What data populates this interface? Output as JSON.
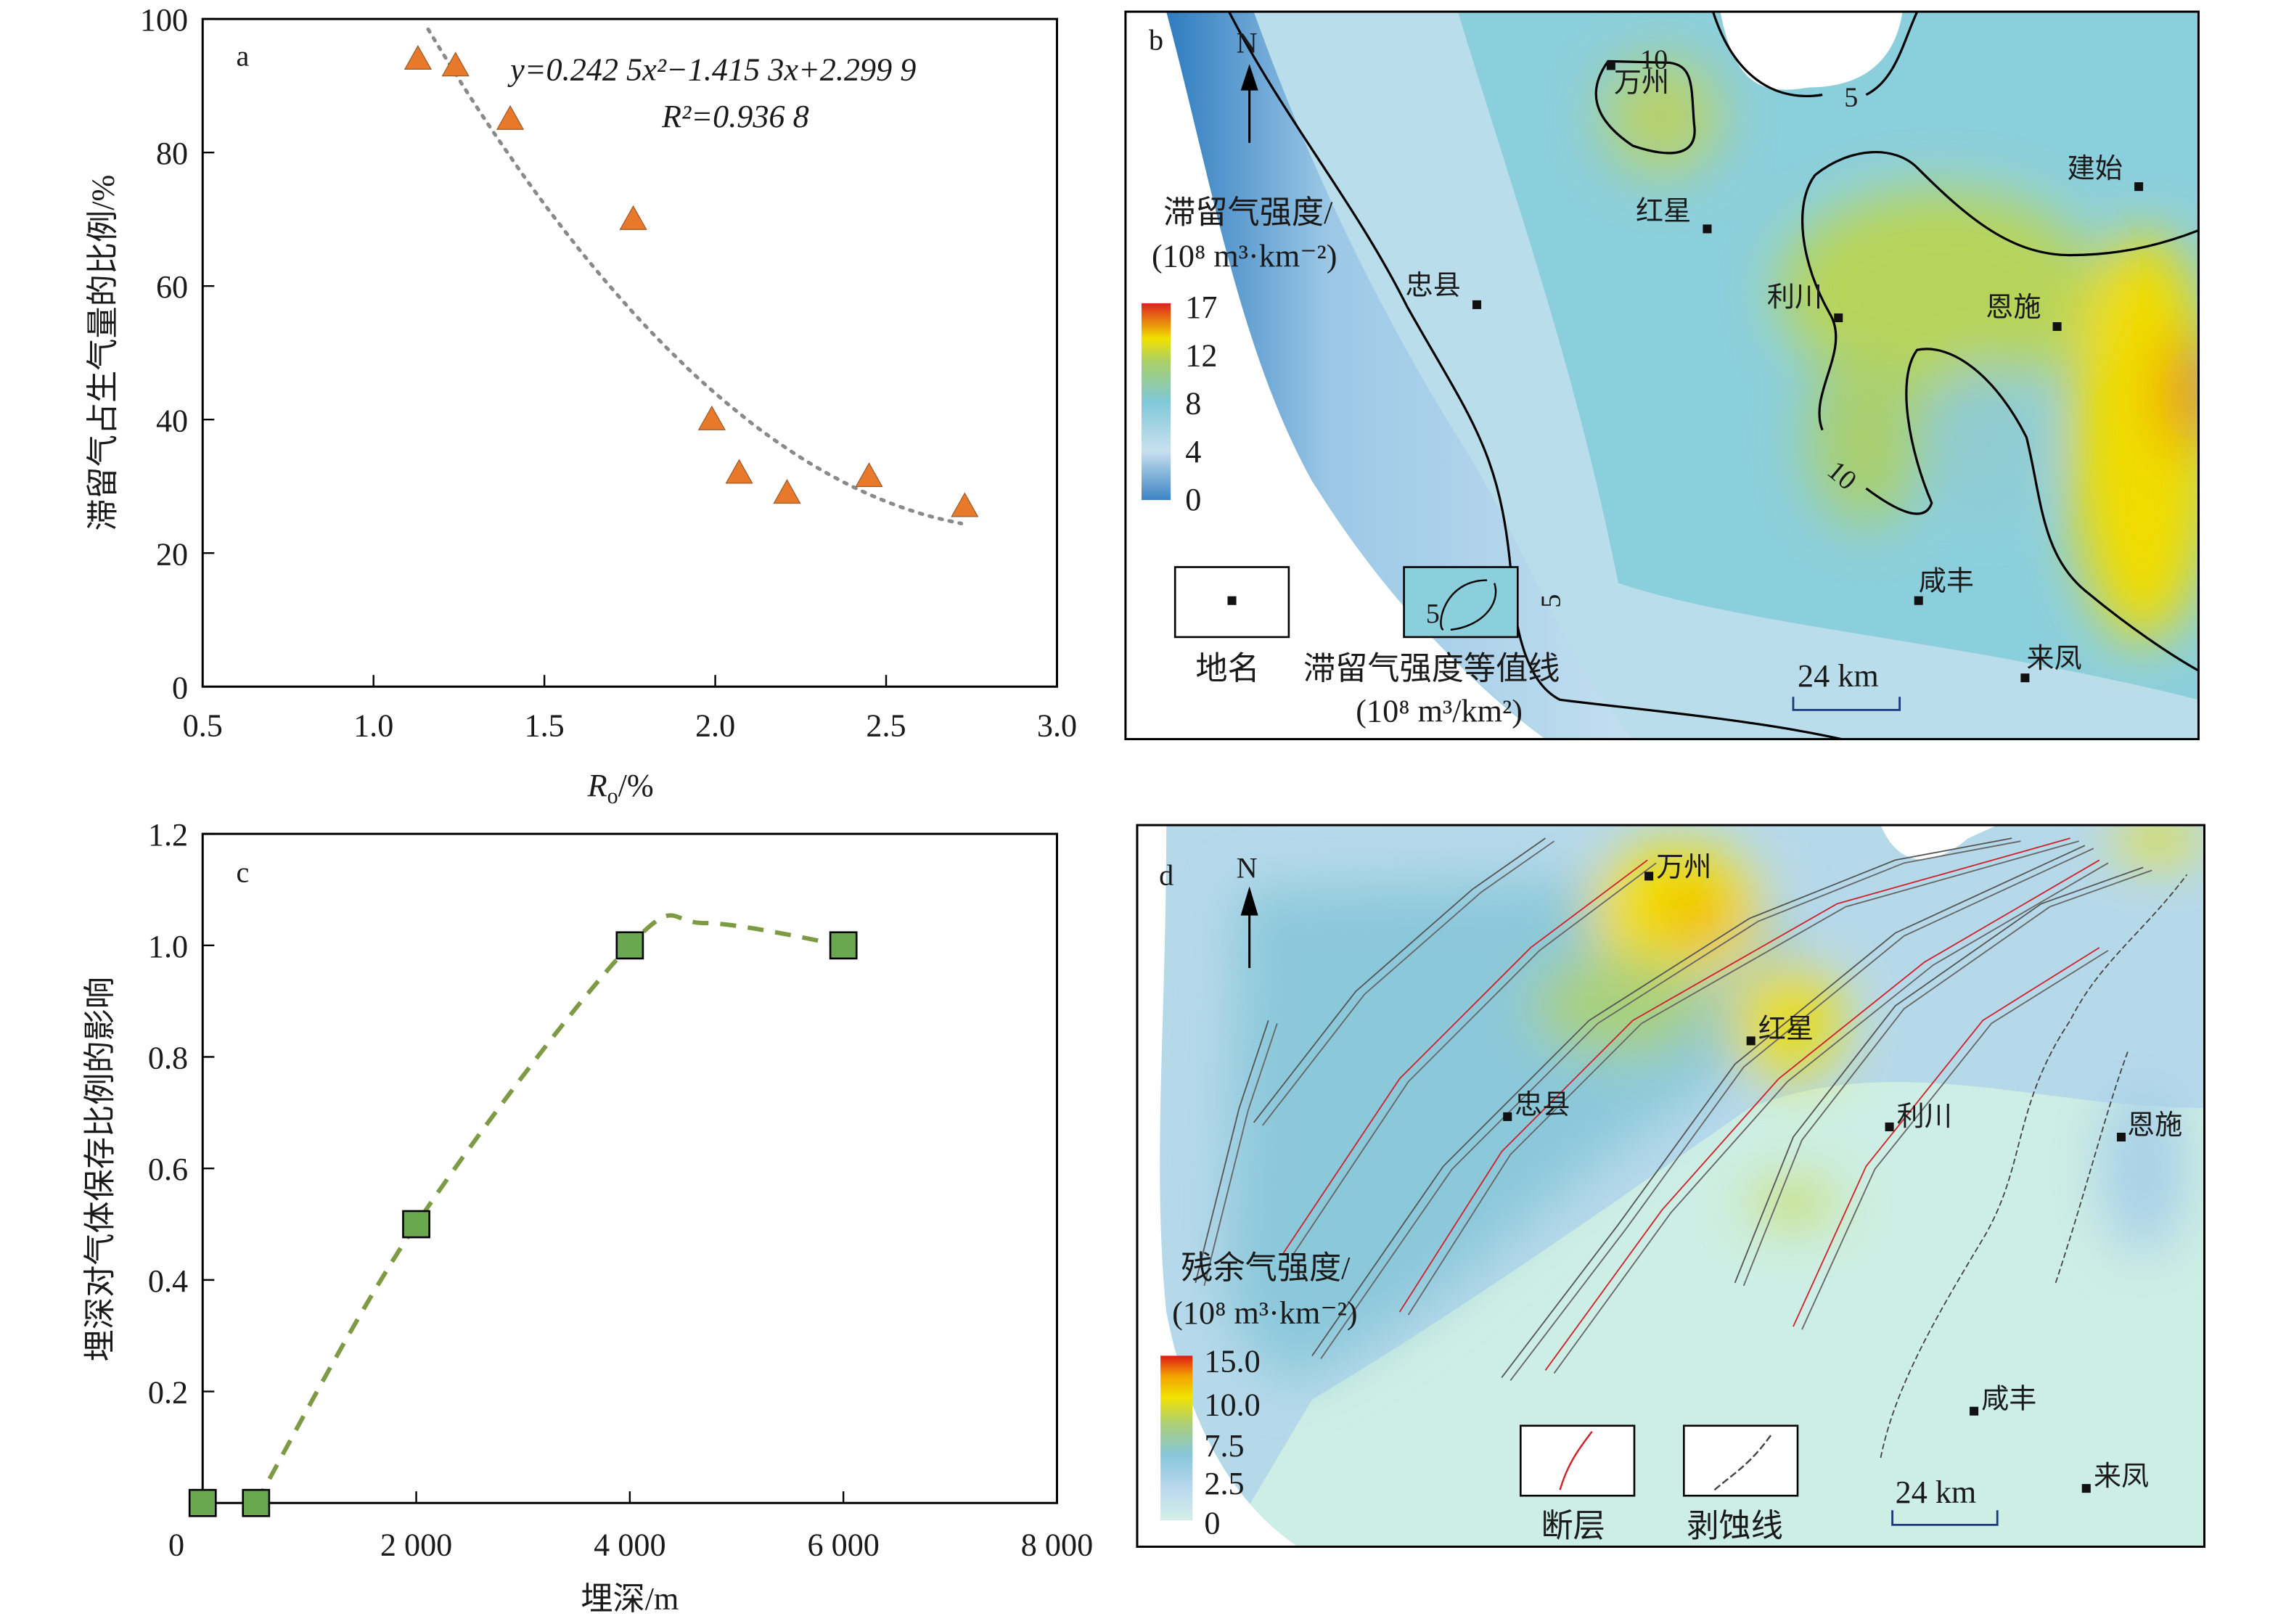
{
  "chart_data": [
    {
      "panel": "a",
      "type": "scatter",
      "xlabel_main": "R",
      "xlabel_sub": "o",
      "xlabel_unit": "/%",
      "ylabel": "滞留气占生气量的比例/%",
      "xlim": [
        0.5,
        3.0
      ],
      "ylim": [
        0,
        100
      ],
      "xticks": [
        "0.5",
        "1.0",
        "1.5",
        "2.0",
        "2.5",
        "3.0"
      ],
      "yticks": [
        "0",
        "20",
        "40",
        "60",
        "80",
        "100"
      ],
      "points": [
        {
          "x": 1.13,
          "y": 94
        },
        {
          "x": 1.24,
          "y": 93
        },
        {
          "x": 1.4,
          "y": 85
        },
        {
          "x": 1.76,
          "y": 70
        },
        {
          "x": 1.99,
          "y": 40
        },
        {
          "x": 2.07,
          "y": 32
        },
        {
          "x": 2.21,
          "y": 29
        },
        {
          "x": 2.45,
          "y": 31.5
        },
        {
          "x": 2.73,
          "y": 27
        }
      ],
      "fit": {
        "a": 0.2425,
        "b": -1.4153,
        "c": 2.2999,
        "xrange": [
          1.16,
          2.72
        ]
      },
      "equation": "y=0.242 5x²−1.415 3x+2.299 9",
      "r2": "R²=0.936 8",
      "marker_color": "#e8792b",
      "fit_color": "#8a8a8a"
    },
    {
      "panel": "c",
      "type": "line",
      "xlabel": "埋深/m",
      "ylabel": "埋深对气体保存比例的影响",
      "xlim": [
        0,
        8000
      ],
      "ylim": [
        0,
        1.2
      ],
      "xticks": [
        "0",
        "2 000",
        "4 000",
        "6 000",
        "8 000"
      ],
      "yticks": [
        "0.2",
        "0.4",
        "0.6",
        "0.8",
        "1.0",
        "1.2"
      ],
      "points": [
        {
          "x": 0,
          "y": 0
        },
        {
          "x": 500,
          "y": 0
        },
        {
          "x": 2000,
          "y": 0.5
        },
        {
          "x": 4000,
          "y": 1.0
        },
        {
          "x": 6000,
          "y": 1.0
        }
      ],
      "trend": [
        {
          "x": 500,
          "y": 0
        },
        {
          "x": 2000,
          "y": 0.5
        },
        {
          "x": 4000,
          "y": 1.0
        },
        {
          "x": 4700,
          "y": 1.04
        },
        {
          "x": 6000,
          "y": 1.0
        }
      ],
      "marker_color": "#6aa84f",
      "trend_color": "#7f9a45"
    }
  ],
  "map_b": {
    "panel_label": "b",
    "north": "N",
    "legend_title": "滞留气强度/",
    "legend_unit": "(10⁸ m³·km⁻²)",
    "legend_ticks": [
      "17",
      "12",
      "8",
      "4",
      "0"
    ],
    "places": [
      {
        "name": "万州"
      },
      {
        "name": "红星"
      },
      {
        "name": "建始"
      },
      {
        "name": "忠县"
      },
      {
        "name": "利川"
      },
      {
        "name": "恩施"
      },
      {
        "name": "咸丰"
      },
      {
        "name": "来凤"
      }
    ],
    "contour_labels": [
      "5",
      "10",
      "10",
      "5"
    ],
    "key_place": "地名",
    "key_contour": "滞留气强度等值线",
    "key_contour_unit": "(10⁸ m³/km²)",
    "key_contour_sample": "5",
    "scale": "24 km"
  },
  "map_d": {
    "panel_label": "d",
    "north": "N",
    "legend_title": "残余气强度/",
    "legend_unit": "(10⁸ m³·km⁻²)",
    "legend_ticks": [
      "15.0",
      "10.0",
      "7.5",
      "2.5",
      "0"
    ],
    "places": [
      {
        "name": "万州"
      },
      {
        "name": "红星"
      },
      {
        "name": "忠县"
      },
      {
        "name": "利川"
      },
      {
        "name": "恩施"
      },
      {
        "name": "咸丰"
      },
      {
        "name": "来凤"
      }
    ],
    "key_fault": "断层",
    "key_erosion": "剥蚀线",
    "scale": "24 km"
  }
}
